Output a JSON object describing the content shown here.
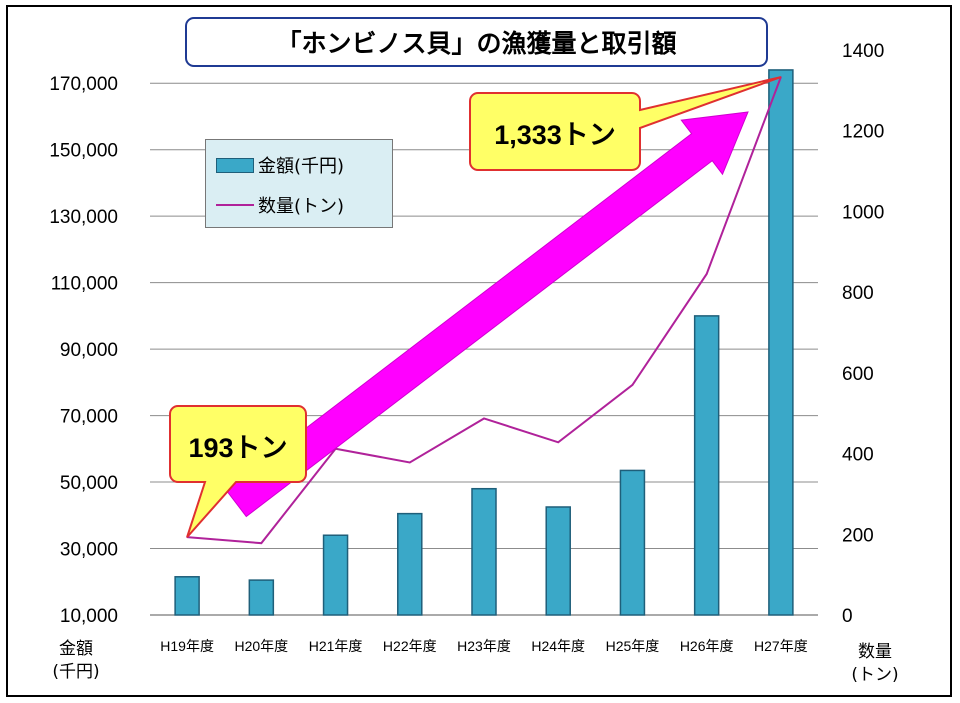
{
  "chart_data": {
    "type": "bar+line",
    "title": "「ホンビノス貝」の漁獲量と取引額",
    "categories": [
      "H19年度",
      "H20年度",
      "H21年度",
      "H22年度",
      "H23年度",
      "H24年度",
      "H25年度",
      "H26年度",
      "H27年度"
    ],
    "series": [
      {
        "name": "金額(千円)",
        "type": "bar",
        "axis": "left",
        "values": [
          21500,
          20500,
          34000,
          40500,
          48000,
          42500,
          53500,
          100000,
          174000
        ]
      },
      {
        "name": "数量(トン)",
        "type": "line",
        "axis": "right",
        "values": [
          193,
          178,
          412,
          378,
          487,
          428,
          570,
          845,
          1333
        ]
      }
    ],
    "left_axis": {
      "label_top": "金額",
      "label_bottom": "(千円)",
      "ylim": [
        10000,
        180000
      ],
      "ticks": [
        "10,000",
        "30,000",
        "50,000",
        "70,000",
        "90,000",
        "110,000",
        "130,000",
        "150,000",
        "170,000"
      ]
    },
    "right_axis": {
      "label_top": "数量",
      "label_bottom": "(トン)",
      "ylim": [
        0,
        1400
      ],
      "ticks": [
        "0",
        "200",
        "400",
        "600",
        "800",
        "1000",
        "1200",
        "1400"
      ]
    },
    "grid": true,
    "legend_position": "top-left",
    "annotations": [
      {
        "text": "193トン",
        "points_to": "H19年度"
      },
      {
        "text": "1,333トン",
        "points_to": "H27年度"
      }
    ],
    "colors": {
      "bar": "#3aa8c8",
      "bar_edge": "#1f5f7a",
      "line": "#b0229a",
      "arrow": "#ff00ff",
      "callout": "#ffff66",
      "callout_edge": "#e03030"
    }
  }
}
